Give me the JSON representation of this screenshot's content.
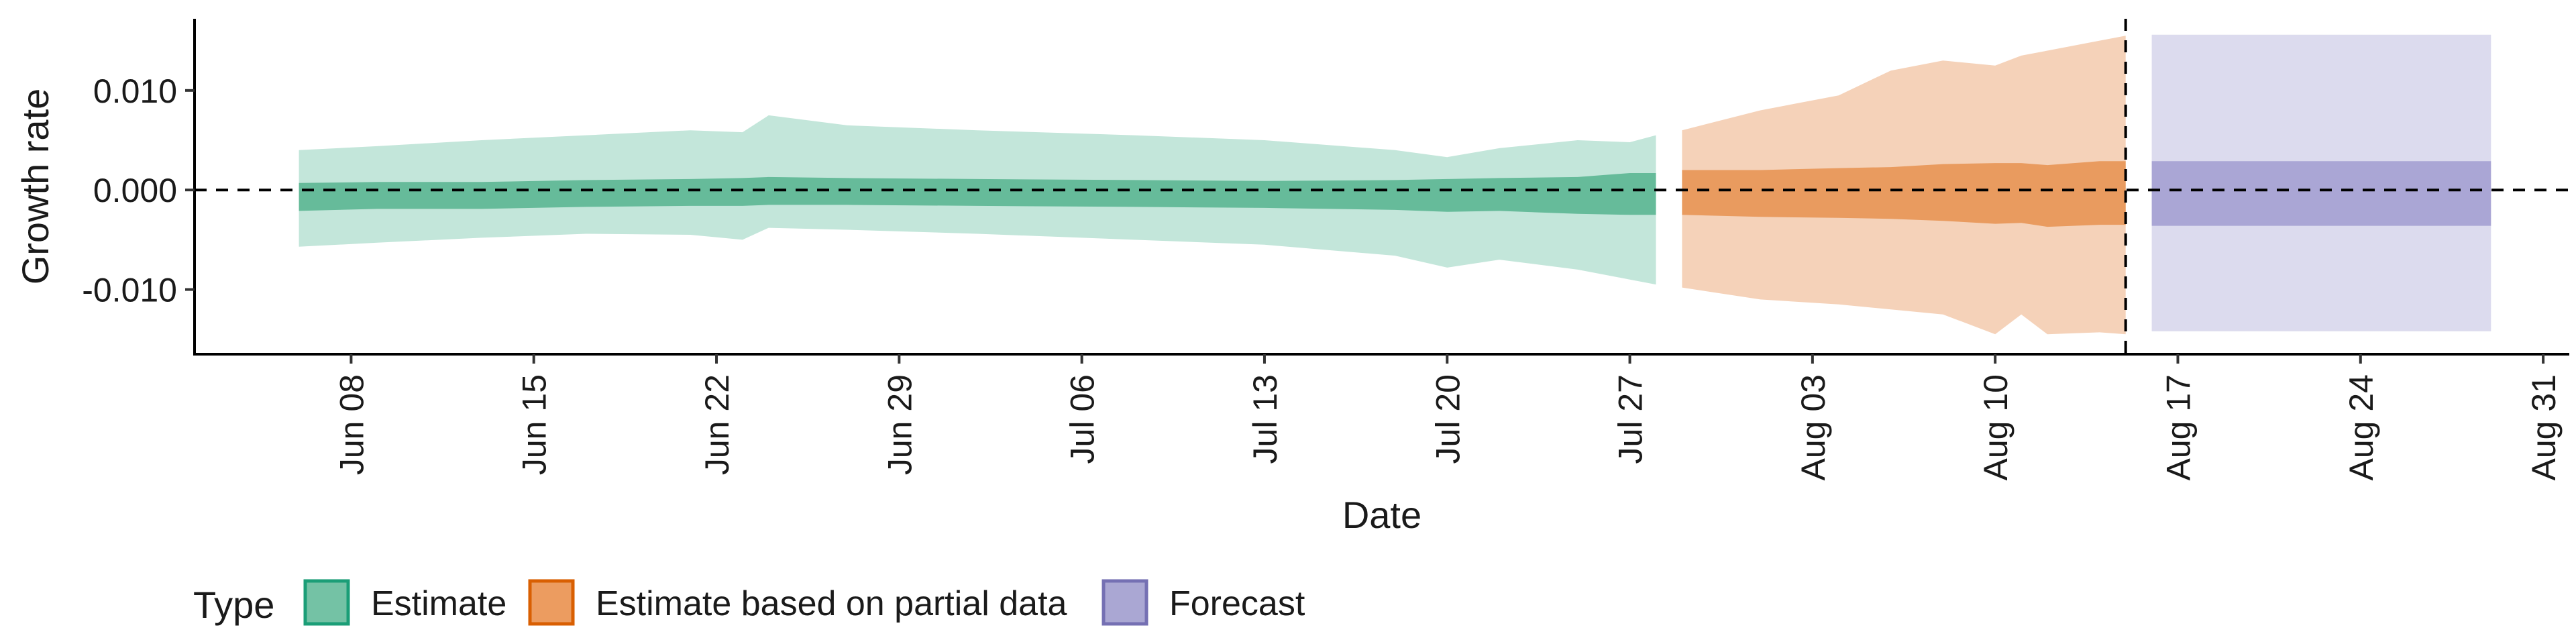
{
  "chart_data": {
    "type": "area",
    "title": "",
    "xlabel": "Date",
    "ylabel": "Growth rate",
    "xlim": [
      "2024-06-02",
      "2024-09-01"
    ],
    "ylim": [
      -0.0165,
      0.0172
    ],
    "x_ticks": [
      {
        "date": "2024-06-08",
        "label": "Jun 08"
      },
      {
        "date": "2024-06-15",
        "label": "Jun 15"
      },
      {
        "date": "2024-06-22",
        "label": "Jun 22"
      },
      {
        "date": "2024-06-29",
        "label": "Jun 29"
      },
      {
        "date": "2024-07-06",
        "label": "Jul 06"
      },
      {
        "date": "2024-07-13",
        "label": "Jul 13"
      },
      {
        "date": "2024-07-20",
        "label": "Jul 20"
      },
      {
        "date": "2024-07-27",
        "label": "Jul 27"
      },
      {
        "date": "2024-08-03",
        "label": "Aug 03"
      },
      {
        "date": "2024-08-10",
        "label": "Aug 10"
      },
      {
        "date": "2024-08-17",
        "label": "Aug 17"
      },
      {
        "date": "2024-08-24",
        "label": "Aug 24"
      },
      {
        "date": "2024-08-31",
        "label": "Aug 31"
      }
    ],
    "y_ticks": [
      {
        "value": 0.01,
        "label": "0.010"
      },
      {
        "value": 0.0,
        "label": "0.000"
      },
      {
        "value": -0.01,
        "label": "-0.010"
      }
    ],
    "reference_lines": {
      "horizontal_y": 0.0,
      "vertical_date": "2024-08-15"
    },
    "legend": {
      "title": "Type",
      "position": "bottom-left",
      "entries": [
        {
          "label": "Estimate",
          "fill": "#74c2a5",
          "stroke": "#1b9e77"
        },
        {
          "label": "Estimate based on partial data",
          "fill": "#ec9c60",
          "stroke": "#d95f02"
        },
        {
          "label": "Forecast",
          "fill": "#aaa7d3",
          "stroke": "#7570b3"
        }
      ]
    },
    "series": [
      {
        "type": "Estimate",
        "outer_fill": "#c3e6da",
        "inner_fill": "#66bb9a",
        "points": [
          {
            "date": "2024-06-06",
            "lo90": -0.0057,
            "lo50": -0.0021,
            "hi50": 0.0007,
            "hi90": 0.004
          },
          {
            "date": "2024-06-09",
            "lo90": -0.0053,
            "lo50": -0.0019,
            "hi50": 0.0008,
            "hi90": 0.0044
          },
          {
            "date": "2024-06-13",
            "lo90": -0.0048,
            "lo50": -0.0019,
            "hi50": 0.0008,
            "hi90": 0.005
          },
          {
            "date": "2024-06-17",
            "lo90": -0.0044,
            "lo50": -0.0017,
            "hi50": 0.001,
            "hi90": 0.0055
          },
          {
            "date": "2024-06-21",
            "lo90": -0.0045,
            "lo50": -0.0016,
            "hi50": 0.0011,
            "hi90": 0.006
          },
          {
            "date": "2024-06-23",
            "lo90": -0.005,
            "lo50": -0.0016,
            "hi50": 0.0012,
            "hi90": 0.0058
          },
          {
            "date": "2024-06-24",
            "lo90": -0.0038,
            "lo50": -0.0015,
            "hi50": 0.0013,
            "hi90": 0.0075
          },
          {
            "date": "2024-06-27",
            "lo90": -0.004,
            "lo50": -0.0015,
            "hi50": 0.0012,
            "hi90": 0.0065
          },
          {
            "date": "2024-07-02",
            "lo90": -0.0044,
            "lo50": -0.0016,
            "hi50": 0.0011,
            "hi90": 0.006
          },
          {
            "date": "2024-07-08",
            "lo90": -0.005,
            "lo50": -0.0017,
            "hi50": 0.001,
            "hi90": 0.0055
          },
          {
            "date": "2024-07-13",
            "lo90": -0.0055,
            "lo50": -0.0018,
            "hi50": 0.0009,
            "hi90": 0.005
          },
          {
            "date": "2024-07-18",
            "lo90": -0.0066,
            "lo50": -0.002,
            "hi50": 0.001,
            "hi90": 0.004
          },
          {
            "date": "2024-07-20",
            "lo90": -0.0078,
            "lo50": -0.0022,
            "hi50": 0.0011,
            "hi90": 0.0033
          },
          {
            "date": "2024-07-22",
            "lo90": -0.007,
            "lo50": -0.0021,
            "hi50": 0.0012,
            "hi90": 0.0042
          },
          {
            "date": "2024-07-25",
            "lo90": -0.008,
            "lo50": -0.0024,
            "hi50": 0.0013,
            "hi90": 0.005
          },
          {
            "date": "2024-07-27",
            "lo90": -0.009,
            "lo50": -0.0025,
            "hi50": 0.0017,
            "hi90": 0.0048
          },
          {
            "date": "2024-07-28",
            "lo90": -0.0095,
            "lo50": -0.0025,
            "hi50": 0.0017,
            "hi90": 0.0055
          }
        ]
      },
      {
        "type": "Estimate based on partial data",
        "outer_fill": "#f5d2b9",
        "inner_fill": "#e99b5f",
        "points": [
          {
            "date": "2024-07-29",
            "lo90": -0.0098,
            "lo50": -0.0025,
            "hi50": 0.002,
            "hi90": 0.006
          },
          {
            "date": "2024-08-01",
            "lo90": -0.011,
            "lo50": -0.0027,
            "hi50": 0.002,
            "hi90": 0.008
          },
          {
            "date": "2024-08-04",
            "lo90": -0.0115,
            "lo50": -0.0028,
            "hi50": 0.0022,
            "hi90": 0.0095
          },
          {
            "date": "2024-08-06",
            "lo90": -0.012,
            "lo50": -0.0029,
            "hi50": 0.0023,
            "hi90": 0.012
          },
          {
            "date": "2024-08-08",
            "lo90": -0.0125,
            "lo50": -0.0031,
            "hi50": 0.0026,
            "hi90": 0.013
          },
          {
            "date": "2024-08-10",
            "lo90": -0.0145,
            "lo50": -0.0034,
            "hi50": 0.0027,
            "hi90": 0.0125
          },
          {
            "date": "2024-08-11",
            "lo90": -0.0125,
            "lo50": -0.0033,
            "hi50": 0.0027,
            "hi90": 0.0135
          },
          {
            "date": "2024-08-12",
            "lo90": -0.0145,
            "lo50": -0.0037,
            "hi50": 0.0025,
            "hi90": 0.014
          },
          {
            "date": "2024-08-14",
            "lo90": -0.0143,
            "lo50": -0.0035,
            "hi50": 0.0029,
            "hi90": 0.015
          },
          {
            "date": "2024-08-15",
            "lo90": -0.0145,
            "lo50": -0.0035,
            "hi50": 0.0029,
            "hi90": 0.0155
          }
        ]
      },
      {
        "type": "Forecast",
        "outer_fill": "#dcdbee",
        "inner_fill": "#aaa6d5",
        "points": [
          {
            "date": "2024-08-16",
            "lo90": -0.0142,
            "lo50": -0.0036,
            "hi50": 0.0029,
            "hi90": 0.0156
          },
          {
            "date": "2024-08-29",
            "lo90": -0.0142,
            "lo50": -0.0036,
            "hi50": 0.0029,
            "hi90": 0.0156
          }
        ]
      }
    ]
  }
}
